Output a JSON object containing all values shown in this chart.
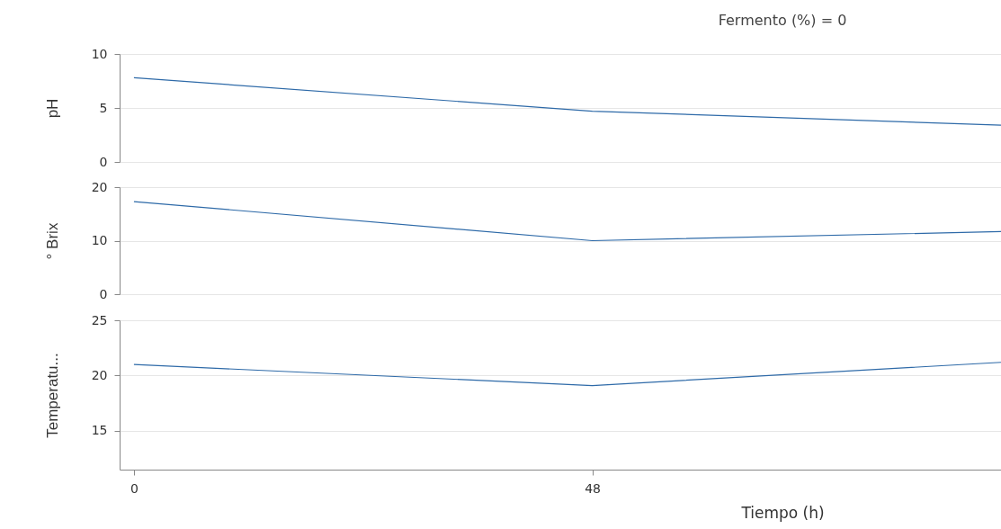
{
  "chart_data": [
    {
      "type": "line",
      "title": "Fermento (%) = 0",
      "ylabel": "pH",
      "x": [
        0,
        48,
        90.8
      ],
      "xlim": [
        -1.5,
        90.8
      ],
      "ylim": [
        0,
        10
      ],
      "yticks": [
        0,
        5,
        10
      ],
      "grid": "y",
      "tick_labels": "y",
      "series": [
        {
          "color": "#2e6aa8",
          "values": [
            7.8,
            4.7,
            3.4
          ]
        }
      ]
    },
    {
      "type": "line",
      "ylabel": "° Brix",
      "x": [
        0,
        48,
        90.8
      ],
      "xlim": [
        -1.5,
        90.8
      ],
      "ylim": [
        0,
        20
      ],
      "yticks": [
        0,
        10,
        20
      ],
      "grid": "y",
      "tick_labels": "y",
      "series": [
        {
          "color": "#2e6aa8",
          "values": [
            17.3,
            10.0,
            11.7
          ]
        }
      ]
    },
    {
      "type": "line",
      "ylabel": "Temperatu...",
      "xlabel": "Tiempo (h)",
      "x": [
        0,
        48,
        90.8
      ],
      "xlim": [
        -1.5,
        90.8
      ],
      "xticks": [
        0,
        48
      ],
      "ylim": [
        11.5,
        25
      ],
      "yticks": [
        15,
        20,
        25
      ],
      "grid": "y",
      "series": [
        {
          "color": "#2e6aa8",
          "values": [
            21.0,
            19.1,
            21.2
          ]
        }
      ]
    }
  ]
}
